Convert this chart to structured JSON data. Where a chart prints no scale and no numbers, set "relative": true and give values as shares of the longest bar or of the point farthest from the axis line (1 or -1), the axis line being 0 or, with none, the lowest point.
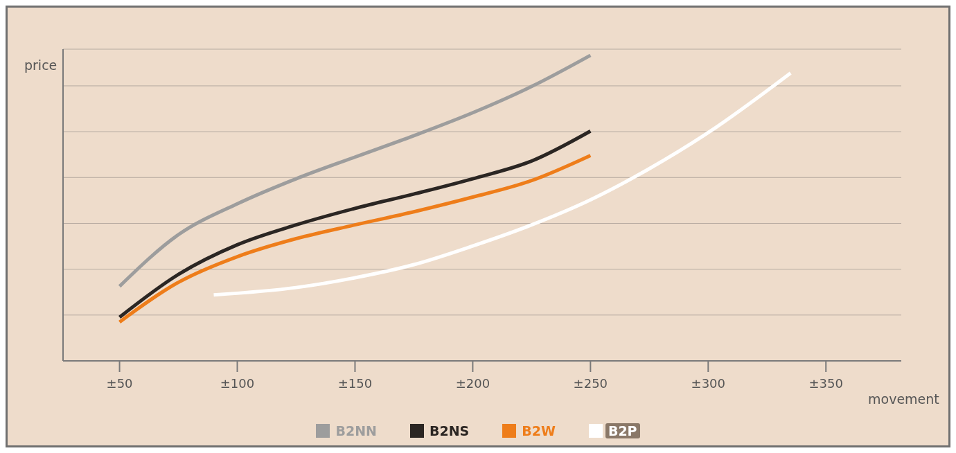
{
  "chart_data": {
    "type": "line",
    "relative": true,
    "xlabel": "movement",
    "ylabel": "price",
    "xlim": [
      26,
      382
    ],
    "xticks": [
      {
        "value": 50,
        "label": "±50"
      },
      {
        "value": 100,
        "label": "±100"
      },
      {
        "value": 150,
        "label": "±150"
      },
      {
        "value": 200,
        "label": "±200"
      },
      {
        "value": 250,
        "label": "±250"
      },
      {
        "value": 300,
        "label": "±300"
      },
      {
        "value": 350,
        "label": "±350"
      }
    ],
    "grid": "y",
    "legend": "bottom",
    "marker": "none",
    "line_style": "solid",
    "series": [
      {
        "name": "B2NN",
        "color": "#9d9d9d",
        "x": [
          50,
          75,
          100,
          125,
          150,
          175,
          200,
          225,
          250
        ],
        "values": [
          0.244,
          0.413,
          0.514,
          0.596,
          0.667,
          0.737,
          0.812,
          0.898,
          1.0
        ]
      },
      {
        "name": "B2NS",
        "color": "#2b2623",
        "x": [
          50,
          75,
          100,
          125,
          150,
          175,
          200,
          225,
          250
        ],
        "values": [
          0.143,
          0.283,
          0.38,
          0.445,
          0.499,
          0.546,
          0.596,
          0.654,
          0.752
        ]
      },
      {
        "name": "B2W",
        "color": "#ee7d1a",
        "x": [
          50,
          75,
          100,
          125,
          150,
          175,
          200,
          225,
          250
        ],
        "values": [
          0.127,
          0.257,
          0.341,
          0.4,
          0.445,
          0.488,
          0.536,
          0.59,
          0.672
        ]
      },
      {
        "name": "B2P",
        "color": "#ffffff",
        "x": [
          90,
          125,
          150,
          175,
          200,
          225,
          250,
          275,
          300,
          335
        ],
        "values": [
          0.216,
          0.24,
          0.272,
          0.315,
          0.376,
          0.445,
          0.527,
          0.629,
          0.747,
          0.942
        ]
      }
    ]
  }
}
